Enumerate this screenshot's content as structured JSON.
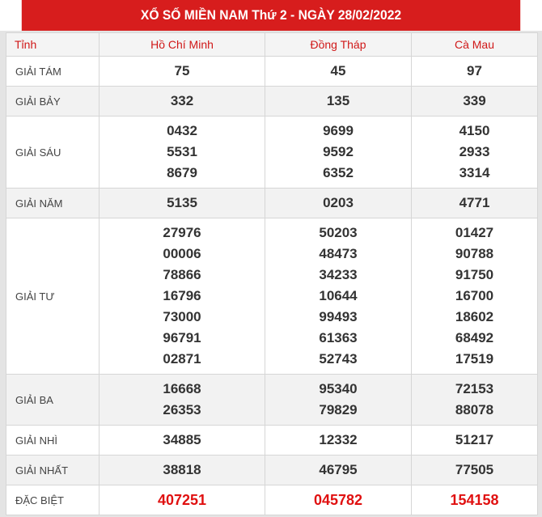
{
  "title": "XỔ SỐ MIỀN NAM Thứ 2 - NGÀY 28/02/2022",
  "header": {
    "label": "Tỉnh",
    "provinces": [
      "Hồ Chí Minh",
      "Đồng Tháp",
      "Cà Mau"
    ]
  },
  "rows": [
    {
      "label": "GIẢI TÁM",
      "values": [
        [
          "75"
        ],
        [
          "45"
        ],
        [
          "97"
        ]
      ]
    },
    {
      "label": "GIẢI BẢY",
      "values": [
        [
          "332"
        ],
        [
          "135"
        ],
        [
          "339"
        ]
      ]
    },
    {
      "label": "GIẢI SÁU",
      "values": [
        [
          "0432",
          "5531",
          "8679"
        ],
        [
          "9699",
          "9592",
          "6352"
        ],
        [
          "4150",
          "2933",
          "3314"
        ]
      ]
    },
    {
      "label": "GIẢI NĂM",
      "values": [
        [
          "5135"
        ],
        [
          "0203"
        ],
        [
          "4771"
        ]
      ]
    },
    {
      "label": "GIẢI TƯ",
      "values": [
        [
          "27976",
          "00006",
          "78866",
          "16796",
          "73000",
          "96791",
          "02871"
        ],
        [
          "50203",
          "48473",
          "34233",
          "10644",
          "99493",
          "61363",
          "52743"
        ],
        [
          "01427",
          "90788",
          "91750",
          "16700",
          "18602",
          "68492",
          "17519"
        ]
      ]
    },
    {
      "label": "GIẢI BA",
      "values": [
        [
          "16668",
          "26353"
        ],
        [
          "95340",
          "79829"
        ],
        [
          "72153",
          "88078"
        ]
      ]
    },
    {
      "label": "GIẢI NHÌ",
      "values": [
        [
          "34885"
        ],
        [
          "12332"
        ],
        [
          "51217"
        ]
      ]
    },
    {
      "label": "GIẢI NHẤT",
      "values": [
        [
          "38818"
        ],
        [
          "46795"
        ],
        [
          "77505"
        ]
      ]
    },
    {
      "label": "ĐẶC BIỆT",
      "values": [
        [
          "407251"
        ],
        [
          "045782"
        ],
        [
          "154158"
        ]
      ]
    }
  ],
  "colors": {
    "header_bg": "#d71d1d",
    "special_prize": "#e01010"
  }
}
